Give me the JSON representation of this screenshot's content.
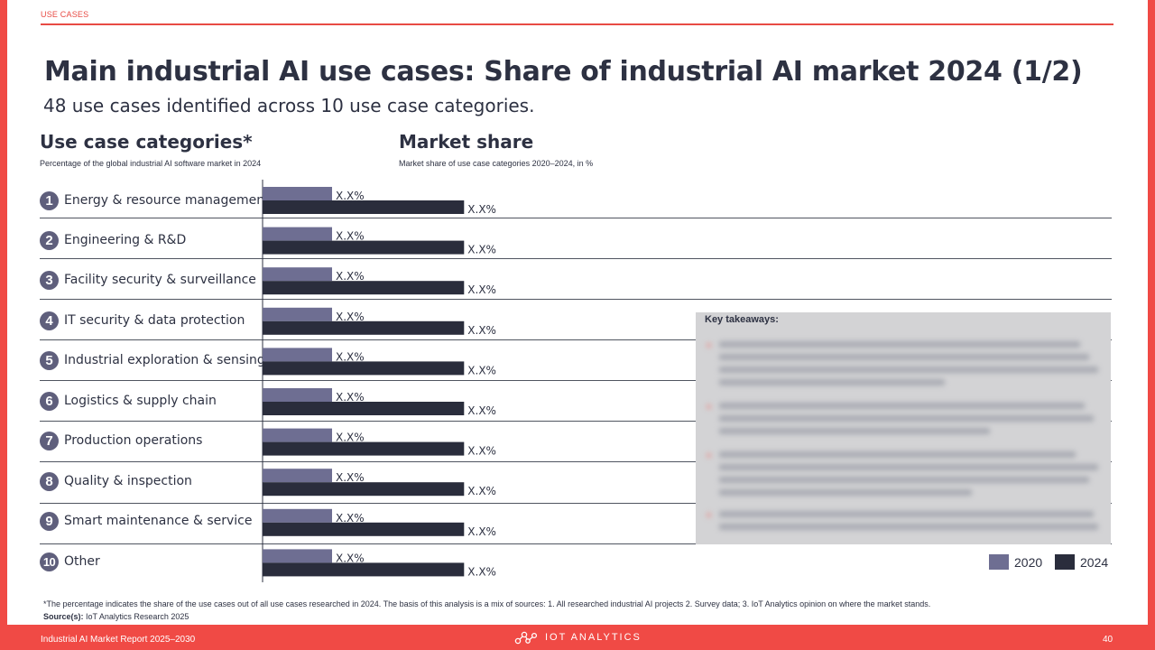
{
  "header": {
    "section": "USE CASES"
  },
  "title": "Main industrial AI use cases: Share of industrial AI market 2024 (1/2)",
  "subtitle": "48 use cases identified across 10 use case categories.",
  "left_column": {
    "heading": "Use case categories*",
    "subheading": "Percentage of the global industrial AI software market in 2024"
  },
  "right_column": {
    "heading": "Market share",
    "subheading": "Market share of use case categories 2020–2024, in %"
  },
  "rows": [
    {
      "number": "1",
      "label": "Energy & resource management"
    },
    {
      "number": "2",
      "label": "Engineering & R&D"
    },
    {
      "number": "3",
      "label": "Facility security & surveillance"
    },
    {
      "number": "4",
      "label": "IT security & data protection"
    },
    {
      "number": "5",
      "label": "Industrial exploration & sensing"
    },
    {
      "number": "6",
      "label": "Logistics & supply chain"
    },
    {
      "number": "7",
      "label": "Production operations"
    },
    {
      "number": "8",
      "label": "Quality & inspection"
    },
    {
      "number": "9",
      "label": "Smart maintenance & service"
    },
    {
      "number": "10",
      "label": "Other"
    }
  ],
  "takeaways": {
    "title": "Key takeaways:"
  },
  "legend": {
    "label_2020": "2020",
    "label_2024": "2024"
  },
  "footnote": "*The percentage indicates the share of the use cases out of all use cases researched in 2024. The basis of this analysis is a mix of sources: 1. All researched industrial AI projects 2. Survey data; 3. IoT Analytics opinion on where the market stands.",
  "source": {
    "label": "Source(s):",
    "text": "IoT Analytics Research 2025"
  },
  "footer": {
    "report": "Industrial AI Market Report 2025–2030",
    "brand": "IOT ANALYTICS",
    "page": "40"
  },
  "colors": {
    "accent": "#e84b44",
    "series_2020": "#6e6e92",
    "series_2024": "#2a2d3c",
    "circle": "#5f5f7c"
  },
  "chart_data": {
    "type": "bar",
    "orientation": "horizontal",
    "categories": [
      "Energy & resource management",
      "Engineering & R&D",
      "Facility security & surveillance",
      "IT security & data protection",
      "Industrial exploration & sensing",
      "Logistics & supply chain",
      "Production operations",
      "Quality & inspection",
      "Smart maintenance & service",
      "Other"
    ],
    "series": [
      {
        "name": "2020",
        "values": [
          1,
          1,
          1,
          1,
          1,
          1,
          1,
          1,
          1,
          1
        ],
        "labels": [
          "X.X%",
          "X.X%",
          "X.X%",
          "X.X%",
          "X.X%",
          "X.X%",
          "X.X%",
          "X.X%",
          "X.X%",
          "X.X%"
        ]
      },
      {
        "name": "2024",
        "values": [
          2.9,
          2.9,
          2.9,
          2.9,
          2.9,
          2.9,
          2.9,
          2.9,
          2.9,
          2.9
        ],
        "labels": [
          "X.X%",
          "X.X%",
          "X.X%",
          "X.X%",
          "X.X%",
          "X.X%",
          "X.X%",
          "X.X%",
          "X.X%",
          "X.X%"
        ]
      }
    ],
    "title": "Market share",
    "subtitle": "Market share of use case categories 2020–2024, in %",
    "xlabel": "",
    "ylabel": "",
    "legend": "bottom-right",
    "grid": false,
    "note": "Values are masked placeholders (X.X%); bar lengths are relative."
  }
}
